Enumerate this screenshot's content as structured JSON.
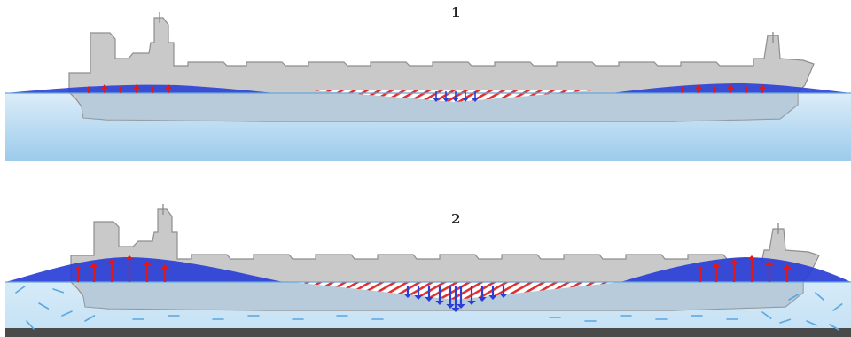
{
  "panels": [
    {
      "label": "1",
      "condition": "floating",
      "water": "calm",
      "seabed_visible": false,
      "upward_arrows": 12,
      "downward_arrows": 5
    },
    {
      "label": "2",
      "condition": "sagging",
      "water": "turbulent",
      "seabed_visible": true,
      "upward_arrows": 12,
      "downward_arrows": 11
    }
  ],
  "colors": {
    "hull": "#c9c9c9",
    "hull_outline": "#8e8e8e",
    "water_top": "#d8ecf8",
    "water_bottom": "#9ccbeb",
    "blue_wave": "#2a3fd6",
    "red_stripe": "#e03030",
    "up_arrow": "#e01818",
    "down_arrow": "#2a3fd6",
    "flow_dash": "#5aa7e2",
    "seabed": "#4a4a4a"
  },
  "icons": {
    "ship": "tanker-ship-icon",
    "up": "arrow-up-icon",
    "down": "arrow-down-icon"
  }
}
